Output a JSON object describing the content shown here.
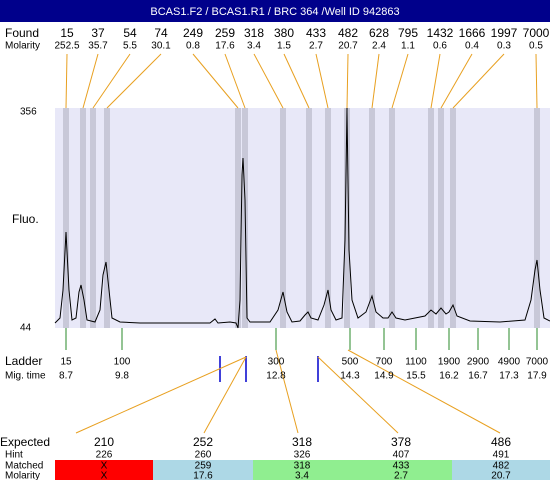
{
  "header": {
    "title": "BCAS1.F2 / BCAS1.R1 / BRC 364 /Well ID 942863"
  },
  "found": {
    "label": "Found",
    "molarity_label": "Molarity",
    "sizes": [
      15,
      37,
      54,
      74,
      249,
      259,
      318,
      380,
      433,
      482,
      628,
      795,
      1432,
      1666,
      1997,
      7000
    ],
    "molarity": [
      252.5,
      35.7,
      5.5,
      30.1,
      0.8,
      17.6,
      3.4,
      1.5,
      2.7,
      20.7,
      2.4,
      1.1,
      0.6,
      0.4,
      0.3,
      0.5
    ]
  },
  "axis": {
    "label": "Fluo.",
    "top": 356,
    "bottom": 44
  },
  "ladder": {
    "label": "Ladder",
    "time_label": "Mig. time",
    "sizes": [
      15,
      100,
      300,
      500,
      700,
      1100,
      1900,
      2900,
      4900,
      7000
    ],
    "times": [
      8.7,
      9.8,
      12.8,
      14.3,
      14.9,
      15.5,
      16.2,
      16.7,
      17.3,
      17.9
    ]
  },
  "expected": {
    "labels": {
      "expected": "Expected",
      "hint": "Hint",
      "matched": "Matched",
      "molarity": "Molarity"
    },
    "expected": [
      210,
      252,
      318,
      378,
      486
    ],
    "hint": [
      226,
      260,
      326,
      407,
      491
    ],
    "matched": [
      "X",
      259,
      318,
      433,
      482
    ],
    "molarity": [
      "X",
      17.6,
      3.4,
      2.7,
      20.7
    ]
  }
}
